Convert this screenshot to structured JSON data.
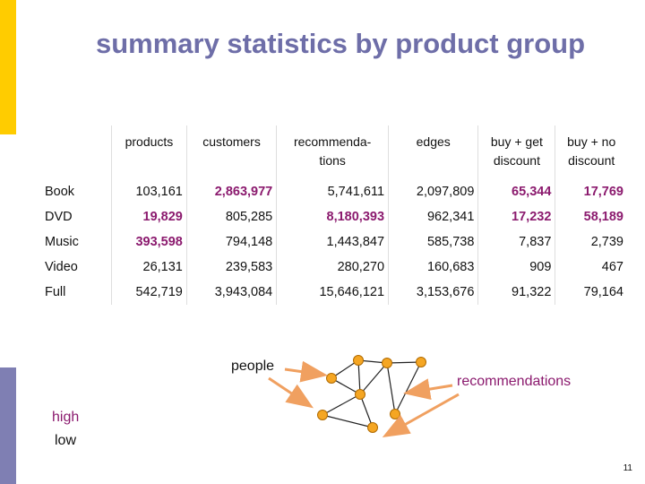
{
  "title": "summary statistics by product group",
  "table": {
    "headers": [
      "products",
      "customers",
      "recommenda-\ntions",
      "edges",
      "buy + get\ndiscount",
      "buy + no\ndiscount"
    ],
    "rows": [
      {
        "label": "Book",
        "cells": [
          "103,161",
          "2,863,977",
          "5,741,611",
          "2,097,809",
          "65,344",
          "17,769"
        ],
        "highlight": [
          false,
          true,
          false,
          false,
          true,
          true
        ]
      },
      {
        "label": "DVD",
        "cells": [
          "19,829",
          "805,285",
          "8,180,393",
          "962,341",
          "17,232",
          "58,189"
        ],
        "highlight": [
          true,
          false,
          true,
          false,
          true,
          true
        ]
      },
      {
        "label": "Music",
        "cells": [
          "393,598",
          "794,148",
          "1,443,847",
          "585,738",
          "7,837",
          "2,739"
        ],
        "highlight": [
          true,
          false,
          false,
          false,
          false,
          false
        ]
      },
      {
        "label": "Video",
        "cells": [
          "26,131",
          "239,583",
          "280,270",
          "160,683",
          "909",
          "467"
        ],
        "highlight": [
          false,
          false,
          false,
          false,
          false,
          false
        ]
      },
      {
        "label": "Full",
        "cells": [
          "542,719",
          "3,943,084",
          "15,646,121",
          "3,153,676",
          "91,322",
          "79,164"
        ],
        "highlight": [
          false,
          false,
          false,
          false,
          false,
          false
        ]
      }
    ]
  },
  "legend": {
    "high": "high",
    "low": "low"
  },
  "diagram": {
    "people_label": "people",
    "recommendations_label": "recommendations"
  },
  "page_number": "11",
  "colors": {
    "accent_purple": "#8b1a6e",
    "title": "#6e6ea8",
    "node_fill": "#f5a623",
    "arrow": "#f0a060",
    "bar_yellow": "#ffcc00",
    "bar_purple": "#7f7fb3"
  }
}
